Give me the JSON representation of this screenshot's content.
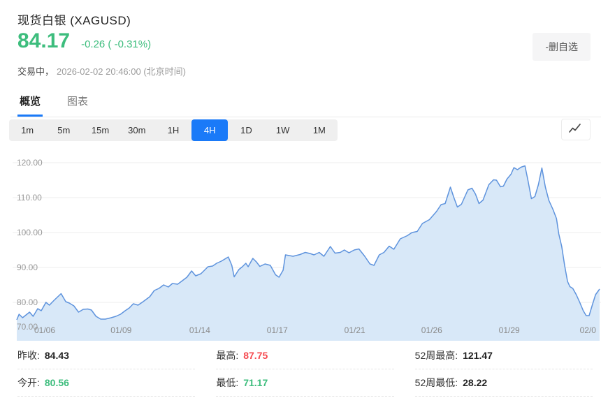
{
  "header": {
    "title": "现货白银 (XAGUSD)",
    "price": "84.17",
    "change": "-0.26 ( -0.31%)",
    "status_label": "交易中，",
    "status_time": "2026-02-02 20:46:00 (北京时间)",
    "watchlist_button": "-删自选"
  },
  "tabs": [
    {
      "id": "overview",
      "label": "概览",
      "active": true
    },
    {
      "id": "chart",
      "label": "图表",
      "active": false
    }
  ],
  "toolbar": {
    "intervals": [
      "1m",
      "5m",
      "15m",
      "30m",
      "1H",
      "4H",
      "1D",
      "1W",
      "1M"
    ],
    "active": "4H",
    "chart_style_icon": "line-chart-icon"
  },
  "chart_data": {
    "type": "area",
    "symbol": "XAGUSD",
    "interval": "4H",
    "ylim": [
      70,
      122
    ],
    "grid": true,
    "y_ticks": [
      "120.00",
      "110.00",
      "100.00",
      "90.00",
      "80.00",
      "70.00"
    ],
    "x_ticks": [
      "01/06",
      "01/09",
      "01/14",
      "01/17",
      "01/21",
      "01/26",
      "01/29",
      "02/0"
    ],
    "x_tick_pos": [
      0.048,
      0.179,
      0.314,
      0.447,
      0.58,
      0.712,
      0.845,
      0.98
    ],
    "points": [
      [
        0.0,
        75.0
      ],
      [
        0.004,
        76.6
      ],
      [
        0.01,
        75.6
      ],
      [
        0.022,
        77.2
      ],
      [
        0.028,
        76.0
      ],
      [
        0.036,
        78.2
      ],
      [
        0.042,
        77.6
      ],
      [
        0.05,
        80.0
      ],
      [
        0.056,
        79.2
      ],
      [
        0.064,
        80.6
      ],
      [
        0.076,
        82.5
      ],
      [
        0.084,
        80.2
      ],
      [
        0.09,
        79.8
      ],
      [
        0.098,
        79.0
      ],
      [
        0.106,
        77.2
      ],
      [
        0.114,
        78.0
      ],
      [
        0.122,
        78.1
      ],
      [
        0.128,
        77.8
      ],
      [
        0.136,
        76.0
      ],
      [
        0.144,
        75.2
      ],
      [
        0.152,
        75.2
      ],
      [
        0.162,
        75.6
      ],
      [
        0.17,
        76.0
      ],
      [
        0.178,
        76.6
      ],
      [
        0.186,
        77.6
      ],
      [
        0.193,
        78.4
      ],
      [
        0.2,
        79.6
      ],
      [
        0.208,
        79.2
      ],
      [
        0.216,
        80.1
      ],
      [
        0.228,
        81.6
      ],
      [
        0.236,
        83.4
      ],
      [
        0.244,
        84.0
      ],
      [
        0.252,
        85.0
      ],
      [
        0.26,
        84.4
      ],
      [
        0.267,
        85.4
      ],
      [
        0.276,
        85.2
      ],
      [
        0.284,
        86.2
      ],
      [
        0.292,
        87.2
      ],
      [
        0.3,
        89.0
      ],
      [
        0.307,
        87.6
      ],
      [
        0.316,
        88.2
      ],
      [
        0.328,
        90.2
      ],
      [
        0.336,
        90.4
      ],
      [
        0.343,
        91.2
      ],
      [
        0.351,
        91.8
      ],
      [
        0.357,
        92.4
      ],
      [
        0.363,
        93.0
      ],
      [
        0.369,
        90.6
      ],
      [
        0.373,
        87.3
      ],
      [
        0.381,
        89.4
      ],
      [
        0.387,
        90.2
      ],
      [
        0.393,
        91.2
      ],
      [
        0.397,
        90.2
      ],
      [
        0.405,
        92.6
      ],
      [
        0.411,
        91.6
      ],
      [
        0.417,
        90.3
      ],
      [
        0.426,
        91.0
      ],
      [
        0.435,
        90.6
      ],
      [
        0.444,
        87.9
      ],
      [
        0.45,
        87.2
      ],
      [
        0.457,
        89.2
      ],
      [
        0.461,
        93.6
      ],
      [
        0.474,
        93.2
      ],
      [
        0.486,
        93.7
      ],
      [
        0.495,
        94.3
      ],
      [
        0.503,
        94.0
      ],
      [
        0.51,
        93.6
      ],
      [
        0.519,
        94.3
      ],
      [
        0.527,
        93.2
      ],
      [
        0.538,
        96.0
      ],
      [
        0.546,
        94.1
      ],
      [
        0.555,
        94.3
      ],
      [
        0.562,
        95.0
      ],
      [
        0.57,
        94.2
      ],
      [
        0.579,
        95.0
      ],
      [
        0.587,
        95.3
      ],
      [
        0.597,
        93.2
      ],
      [
        0.606,
        91.0
      ],
      [
        0.613,
        90.6
      ],
      [
        0.622,
        93.6
      ],
      [
        0.63,
        94.3
      ],
      [
        0.639,
        96.1
      ],
      [
        0.647,
        95.2
      ],
      [
        0.658,
        98.2
      ],
      [
        0.67,
        99.1
      ],
      [
        0.678,
        100.0
      ],
      [
        0.687,
        100.3
      ],
      [
        0.696,
        102.6
      ],
      [
        0.708,
        103.7
      ],
      [
        0.72,
        106.0
      ],
      [
        0.728,
        108.0
      ],
      [
        0.735,
        108.3
      ],
      [
        0.744,
        113.0
      ],
      [
        0.75,
        110.0
      ],
      [
        0.756,
        107.3
      ],
      [
        0.763,
        108.1
      ],
      [
        0.774,
        112.2
      ],
      [
        0.781,
        112.7
      ],
      [
        0.787,
        111.0
      ],
      [
        0.793,
        108.3
      ],
      [
        0.8,
        109.3
      ],
      [
        0.81,
        113.7
      ],
      [
        0.818,
        115.1
      ],
      [
        0.823,
        115.0
      ],
      [
        0.83,
        113.1
      ],
      [
        0.835,
        113.3
      ],
      [
        0.841,
        115.3
      ],
      [
        0.848,
        116.7
      ],
      [
        0.853,
        118.6
      ],
      [
        0.859,
        118.0
      ],
      [
        0.865,
        118.7
      ],
      [
        0.872,
        119.1
      ],
      [
        0.877,
        115.0
      ],
      [
        0.883,
        109.7
      ],
      [
        0.889,
        110.3
      ],
      [
        0.895,
        113.7
      ],
      [
        0.901,
        118.5
      ],
      [
        0.907,
        113.0
      ],
      [
        0.913,
        109.2
      ],
      [
        0.92,
        106.6
      ],
      [
        0.926,
        104.0
      ],
      [
        0.93,
        99.6
      ],
      [
        0.935,
        96.0
      ],
      [
        0.94,
        90.5
      ],
      [
        0.945,
        86.0
      ],
      [
        0.949,
        84.5
      ],
      [
        0.954,
        84.0
      ],
      [
        0.96,
        82.2
      ],
      [
        0.966,
        80.0
      ],
      [
        0.972,
        77.6
      ],
      [
        0.977,
        76.2
      ],
      [
        0.982,
        76.2
      ],
      [
        0.987,
        79.0
      ],
      [
        0.993,
        82.2
      ],
      [
        1.0,
        83.8
      ]
    ]
  },
  "stats": {
    "columns": [
      {
        "rows": [
          {
            "id": "prev-close",
            "label": "昨收:",
            "value": "84.43",
            "color": "#222222"
          },
          {
            "id": "open",
            "label": "今开:",
            "value": "80.56",
            "color": "#3dbd7d"
          }
        ]
      },
      {
        "rows": [
          {
            "id": "high",
            "label": "最高:",
            "value": "87.75",
            "color": "#f5494f"
          },
          {
            "id": "low",
            "label": "最低:",
            "value": "71.17",
            "color": "#3dbd7d"
          }
        ]
      },
      {
        "rows": [
          {
            "id": "wk52-high",
            "label": "52周最高:",
            "value": "121.47",
            "color": "#222222"
          },
          {
            "id": "wk52-low",
            "label": "52周最低:",
            "value": "28.22",
            "color": "#222222"
          }
        ]
      }
    ]
  },
  "colors": {
    "up_down_green": "#3dbd7d",
    "down_red": "#f5494f",
    "accent_blue": "#1a7af8",
    "chart_line": "#5e93dd",
    "chart_fill": "#d8e8f8",
    "grid_line": "#ededed",
    "axis_text": "#999999",
    "toolbar_bg": "#efefef"
  }
}
